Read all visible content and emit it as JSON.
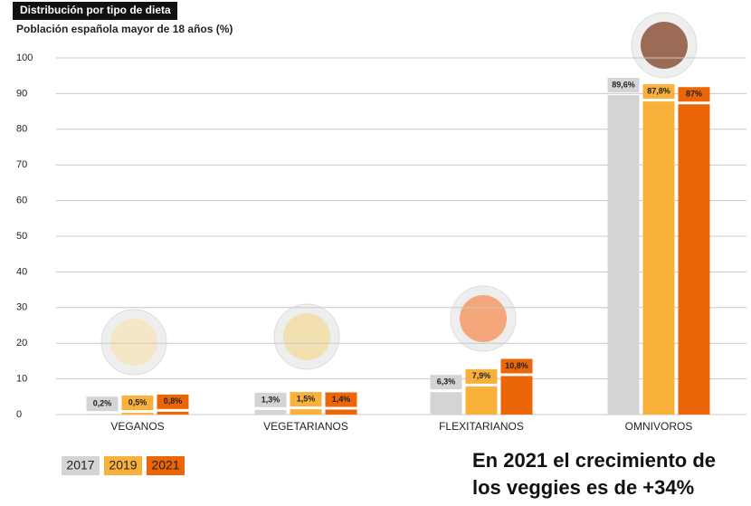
{
  "chart_data": {
    "type": "bar",
    "title": "Distribución por tipo de dieta",
    "subtitle": "Población española mayor de 18 años (%)",
    "categories": [
      "VEGANOS",
      "VEGETARIANOS",
      "FLEXITARIANOS",
      "OMNIVOROS"
    ],
    "series": [
      {
        "name": "2017",
        "color": "#d4d4d4",
        "values": [
          0.2,
          1.3,
          6.3,
          89.6
        ],
        "value_labels": [
          "0,2%",
          "1,3%",
          "6,3%",
          "89,6%"
        ]
      },
      {
        "name": "2019",
        "color": "#f9b13c",
        "values": [
          0.5,
          1.5,
          7.9,
          87.8
        ],
        "value_labels": [
          "0,5%",
          "1,5%",
          "7,9%",
          "87,8%"
        ]
      },
      {
        "name": "2021",
        "color": "#ec6608",
        "values": [
          0.8,
          1.4,
          10.8,
          87
        ],
        "value_labels": [
          "0,8%",
          "1,4%",
          "10,8%",
          "87%"
        ]
      }
    ],
    "ylim": [
      0,
      100
    ],
    "yticks": [
      0,
      10,
      20,
      30,
      40,
      50,
      60,
      70,
      80,
      90,
      100
    ],
    "grid": true,
    "annotation": "En 2021 el crecimiento de los veggies es de +34%"
  }
}
